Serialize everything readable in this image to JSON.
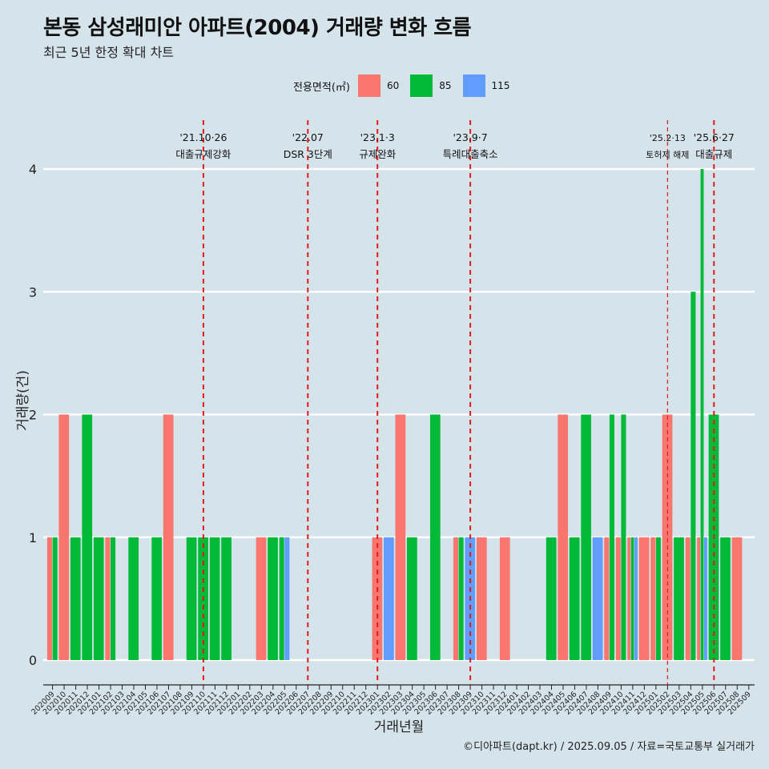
{
  "title": "본동 삼성래미안 아파트(2004) 거래량 변화 흐름",
  "subtitle": "최근 5년 한정 확대 차트",
  "legend": {
    "title": "전용면적(㎡)",
    "items": [
      {
        "label": "60",
        "color": "#f8766d"
      },
      {
        "label": "85",
        "color": "#00ba38"
      },
      {
        "label": "115",
        "color": "#619cff"
      }
    ]
  },
  "footer": "©디아파트(dapt.kr) / 2025.09.05 / 자료=국토교통부 실거래가",
  "chart_data": {
    "type": "bar",
    "xlabel": "거래년월",
    "ylabel": "거래량(건)",
    "ylim": [
      0,
      4
    ],
    "yticks": [
      "0",
      "1",
      "2",
      "3",
      "4"
    ],
    "categories": [
      "202009",
      "202010",
      "202011",
      "202012",
      "202101",
      "202102",
      "202103",
      "202104",
      "202105",
      "202106",
      "202107",
      "202108",
      "202109",
      "202110",
      "202111",
      "202112",
      "202201",
      "202202",
      "202203",
      "202204",
      "202205",
      "202206",
      "202207",
      "202208",
      "202209",
      "202210",
      "202211",
      "202212",
      "202301",
      "202302",
      "202303",
      "202304",
      "202305",
      "202306",
      "202307",
      "202308",
      "202309",
      "202310",
      "202311",
      "202312",
      "202401",
      "202402",
      "202403",
      "202404",
      "202405",
      "202406",
      "202407",
      "202408",
      "202409",
      "202410",
      "202411",
      "202412",
      "202501",
      "202502",
      "202503",
      "202504",
      "202505",
      "202506",
      "202507",
      "202508",
      "202509"
    ],
    "series": [
      {
        "name": "60",
        "color": "#f8766d",
        "values": [
          1,
          2,
          0,
          0,
          0,
          1,
          0,
          0,
          0,
          0,
          2,
          0,
          0,
          0,
          0,
          0,
          0,
          0,
          1,
          0,
          0,
          0,
          0,
          0,
          0,
          0,
          0,
          0,
          1,
          0,
          2,
          0,
          0,
          0,
          0,
          1,
          0,
          1,
          0,
          1,
          0,
          0,
          0,
          0,
          2,
          0,
          0,
          0,
          1,
          1,
          1,
          1,
          1,
          2,
          0,
          1,
          1,
          0,
          0,
          1,
          0
        ]
      },
      {
        "name": "85",
        "color": "#00ba38",
        "values": [
          1,
          0,
          1,
          2,
          1,
          1,
          0,
          1,
          0,
          1,
          0,
          0,
          1,
          1,
          1,
          1,
          0,
          0,
          0,
          1,
          1,
          0,
          0,
          0,
          0,
          0,
          0,
          0,
          0,
          0,
          0,
          1,
          0,
          2,
          0,
          1,
          0,
          0,
          0,
          0,
          0,
          0,
          0,
          1,
          0,
          1,
          2,
          0,
          2,
          2,
          1,
          0,
          1,
          0,
          1,
          3,
          4,
          2,
          1,
          0,
          0
        ]
      },
      {
        "name": "115",
        "color": "#619cff",
        "values": [
          0,
          0,
          0,
          0,
          0,
          0,
          0,
          0,
          0,
          0,
          0,
          0,
          0,
          0,
          0,
          0,
          0,
          0,
          0,
          0,
          1,
          0,
          0,
          0,
          0,
          0,
          0,
          0,
          0,
          1,
          0,
          0,
          0,
          0,
          0,
          0,
          1,
          0,
          0,
          0,
          0,
          0,
          0,
          0,
          0,
          0,
          0,
          1,
          0,
          0,
          1,
          0,
          0,
          0,
          0,
          0,
          1,
          0,
          0,
          0,
          0
        ]
      }
    ],
    "annotations": [
      {
        "category": "202110",
        "date": "'21.10·26",
        "label": "대출규제강화",
        "style": "major"
      },
      {
        "category": "202207",
        "date": "'22.07",
        "label": "DSR 3단계",
        "style": "major"
      },
      {
        "category": "202301",
        "date": "'23.1·3",
        "label": "규제완화",
        "style": "major"
      },
      {
        "category": "202309",
        "date": "'23.9·7",
        "label": "특례대출축소",
        "style": "major"
      },
      {
        "category": "202502",
        "date": "'25.2·13",
        "label": "토허제 해제",
        "style": "minor"
      },
      {
        "category": "202506",
        "date": "'25.6·27",
        "label": "대출규제",
        "style": "major"
      }
    ]
  }
}
